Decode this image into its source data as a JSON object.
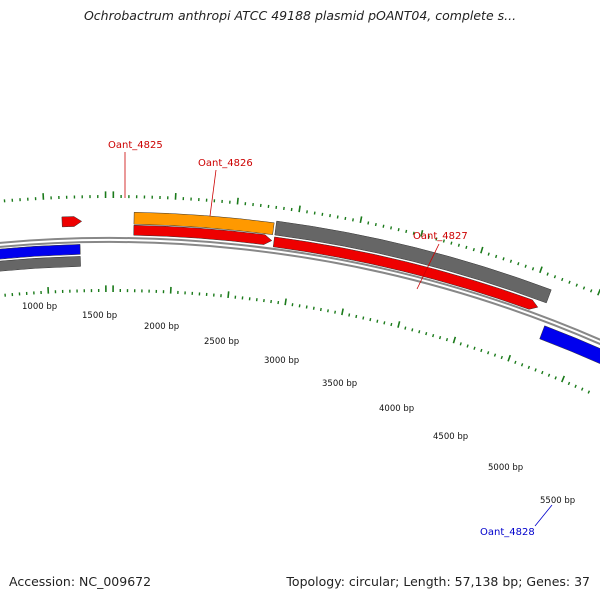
{
  "title": "Ochrobactrum anthropi ATCC 49188 plasmid pOANT04, complete s...",
  "footer": {
    "accession": "Accession: NC_009672",
    "summary": "Topology: circular; Length: 57,138 bp; Genes: 37"
  },
  "colors": {
    "backbone": "#888888",
    "tick": "#1a7a1a",
    "red_gene": "#ee0000",
    "orange_gene": "#ff9900",
    "grey_gene": "#666666",
    "blue_gene": "#0000ee",
    "label_red": "#cc0000",
    "label_blue": "#0000cc"
  },
  "bp_labels": [
    "1000 bp",
    "1500 bp",
    "2000 bp",
    "2500 bp",
    "3000 bp",
    "3500 bp",
    "4000 bp",
    "4500 bp",
    "5000 bp",
    "5500 bp"
  ],
  "gene_labels": [
    {
      "text": "Oant_4825",
      "color": "red"
    },
    {
      "text": "Oant_4826",
      "color": "red"
    },
    {
      "text": "Oant_4827",
      "color": "red"
    },
    {
      "text": "Oant_4828",
      "color": "blue"
    }
  ]
}
